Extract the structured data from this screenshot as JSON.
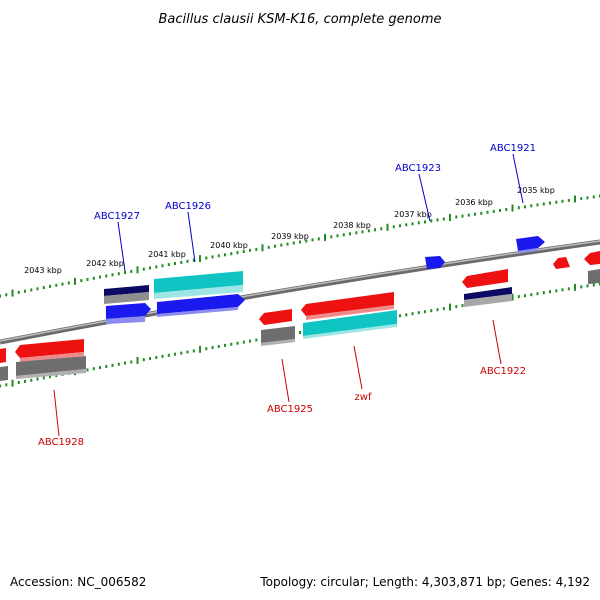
{
  "title": "Bacillus clausii KSM-K16, complete genome",
  "footer": {
    "accession": "Accession: NC_006582",
    "topology": "Topology: circular; Length: 4,303,871 bp; Genes: 4,192"
  },
  "scale_labels": [
    "2043 kbp",
    "2042 kbp",
    "2041 kbp",
    "2040 kbp",
    "2039 kbp",
    "2038 kbp",
    "2037 kbp",
    "2036 kbp",
    "2035 kbp"
  ],
  "gene_labels": {
    "forward": [
      "ABC1927",
      "ABC1926",
      "ABC1923",
      "ABC1921"
    ],
    "reverse": [
      "ABC1928",
      "ABC1925",
      "zwf",
      "ABC1922"
    ]
  },
  "colors": {
    "forward_label": "#0000cc",
    "reverse_label": "#cc0000",
    "backbone": "#8a8a8a",
    "ticks": "#228b22",
    "red": "#ee1111",
    "blue": "#1a1aee",
    "cyan": "#10c4c4",
    "navy": "#0b0b66",
    "gray": "#6e6e6e"
  }
}
